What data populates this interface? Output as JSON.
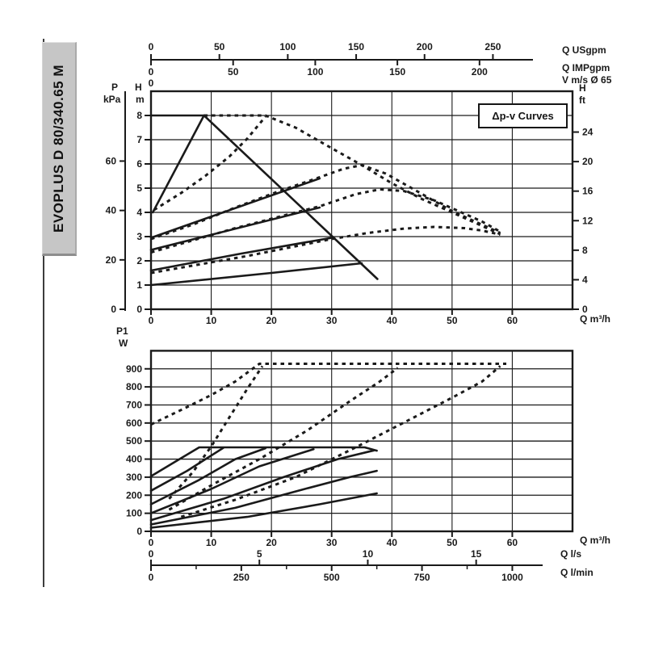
{
  "sidebar": {
    "label": "EVOPLUS D 80/340.65 M"
  },
  "annotation": {
    "text": "Δp-v Curves"
  },
  "labels": {
    "p": "P",
    "kpa": "kPa",
    "h_left": "H",
    "m": "m",
    "h_right": "H",
    "ft": "ft",
    "p1": "P1",
    "w": "W"
  },
  "units": {
    "usgpm": "Q USgpm",
    "impgpm": "Q IMPgpm",
    "vms": "V m/s Ø 65",
    "qm3h": "Q m³/h",
    "qls": "Q l/s",
    "qlmin": "Q l/min"
  },
  "flow_scales": {
    "usgpm_ticks": [
      0,
      50,
      100,
      150,
      200,
      250
    ],
    "impgpm_ticks": [
      0,
      50,
      100,
      150,
      200
    ],
    "v_scale_zero": "0",
    "ls_ticks": [
      0,
      5,
      10,
      15
    ],
    "lmin_ticks": [
      0,
      250,
      500,
      750,
      1000
    ],
    "lmin_minor_ticks": [
      125,
      375,
      625,
      875
    ]
  },
  "chart_data": [
    {
      "id": "head-vs-flow",
      "type": "line",
      "title": "Δp-v Curves",
      "xlabel": "Q m³/h",
      "xlim": [
        0,
        70
      ],
      "x_ticks": [
        0,
        10,
        20,
        30,
        40,
        50,
        60
      ],
      "ylabel": "H m",
      "ylim_m": [
        0,
        9
      ],
      "y_ticks_m": [
        0,
        1,
        2,
        3,
        4,
        5,
        6,
        7,
        8
      ],
      "y_ticks_kpa": [
        0,
        20,
        40,
        60
      ],
      "y_ticks_ft": [
        0,
        4,
        8,
        12,
        16,
        20,
        24
      ],
      "grid": true,
      "series": [
        {
          "name": "max-speed-single",
          "style": "solid",
          "points": [
            [
              0,
              8
            ],
            [
              8.8,
              8
            ],
            [
              37.6,
              1.25
            ]
          ]
        },
        {
          "name": "setpoint-riser-1",
          "style": "solid",
          "points": [
            [
              0.3,
              4
            ],
            [
              8.8,
              8
            ]
          ]
        },
        {
          "name": "setpoint-riser-2",
          "style": "solid",
          "points": [
            [
              0,
              2.95
            ],
            [
              28,
              5.4
            ]
          ]
        },
        {
          "name": "setpoint-riser-3",
          "style": "solid",
          "points": [
            [
              0,
              2.45
            ],
            [
              28,
              4.2
            ]
          ]
        },
        {
          "name": "setpoint-riser-4",
          "style": "solid",
          "points": [
            [
              0,
              1.6
            ],
            [
              15,
              2.3
            ],
            [
              30,
              2.95
            ]
          ]
        },
        {
          "name": "setpoint-riser-5",
          "style": "solid",
          "points": [
            [
              0,
              1.0
            ],
            [
              20,
              1.5
            ],
            [
              35,
              1.9
            ]
          ]
        },
        {
          "name": "max-speed-parallel",
          "style": "dashed",
          "points": [
            [
              8.8,
              8
            ],
            [
              19,
              8
            ],
            [
              24,
              7.5
            ],
            [
              30,
              6.65
            ],
            [
              35,
              5.95
            ],
            [
              40,
              5.2
            ],
            [
              45,
              4.55
            ],
            [
              50,
              4.0
            ],
            [
              54,
              3.55
            ],
            [
              58,
              3.1
            ]
          ]
        },
        {
          "name": "parallel-riser-1",
          "style": "dashed",
          "points": [
            [
              0.5,
              4.1
            ],
            [
              5,
              4.8
            ],
            [
              9,
              5.5
            ],
            [
              13,
              6.3
            ],
            [
              16,
              7.05
            ],
            [
              19,
              7.95
            ]
          ]
        },
        {
          "name": "parallel-hump-2",
          "style": "dashed",
          "points": [
            [
              0,
              2.9
            ],
            [
              7,
              3.5
            ],
            [
              14,
              4.2
            ],
            [
              21,
              4.85
            ],
            [
              28,
              5.45
            ],
            [
              32,
              5.8
            ],
            [
              35,
              5.95
            ],
            [
              39,
              5.6
            ],
            [
              44,
              4.9
            ],
            [
              50,
              4.05
            ],
            [
              54,
              3.6
            ],
            [
              58,
              3.15
            ]
          ]
        },
        {
          "name": "parallel-hump-3",
          "style": "dashed",
          "points": [
            [
              0,
              2.35
            ],
            [
              7,
              2.85
            ],
            [
              14,
              3.35
            ],
            [
              21,
              3.8
            ],
            [
              28,
              4.25
            ],
            [
              34,
              4.75
            ],
            [
              38,
              4.95
            ],
            [
              42,
              4.88
            ],
            [
              47,
              4.5
            ],
            [
              52,
              3.95
            ],
            [
              55,
              3.62
            ],
            [
              58,
              3.2
            ]
          ]
        },
        {
          "name": "parallel-hump-4",
          "style": "dashed",
          "points": [
            [
              0,
              1.5
            ],
            [
              8,
              1.85
            ],
            [
              16,
              2.2
            ],
            [
              24,
              2.6
            ],
            [
              30,
              2.9
            ],
            [
              36,
              3.15
            ],
            [
              42,
              3.33
            ],
            [
              47,
              3.4
            ],
            [
              52,
              3.35
            ],
            [
              55,
              3.25
            ],
            [
              58,
              3.08
            ]
          ]
        }
      ]
    },
    {
      "id": "power-vs-flow",
      "type": "line",
      "xlabel": "Q m³/h",
      "xlim": [
        0,
        70
      ],
      "x_ticks": [
        0,
        10,
        20,
        30,
        40,
        50,
        60
      ],
      "ylabel": "P1 W",
      "ylim_w": [
        0,
        1000
      ],
      "y_ticks_w": [
        0,
        100,
        200,
        300,
        400,
        500,
        600,
        700,
        800,
        900
      ],
      "grid": true,
      "series": [
        {
          "name": "power-max-single",
          "style": "solid",
          "points": [
            [
              0,
              305
            ],
            [
              4,
              385
            ],
            [
              8,
              465
            ],
            [
              35.5,
              465
            ],
            [
              37.5,
              447
            ]
          ]
        },
        {
          "name": "power-solid-2",
          "style": "solid",
          "points": [
            [
              0,
              225
            ],
            [
              6,
              335
            ],
            [
              12,
              462
            ]
          ]
        },
        {
          "name": "power-solid-3",
          "style": "solid",
          "points": [
            [
              0,
              150
            ],
            [
              8,
              285
            ],
            [
              14,
              400
            ],
            [
              19,
              460
            ]
          ]
        },
        {
          "name": "power-solid-4",
          "style": "solid",
          "points": [
            [
              0,
              100
            ],
            [
              10,
              235
            ],
            [
              18,
              360
            ],
            [
              27,
              455
            ]
          ]
        },
        {
          "name": "power-solid-5",
          "style": "solid",
          "points": [
            [
              0,
              62
            ],
            [
              12,
              180
            ],
            [
              22,
              300
            ],
            [
              31,
              400
            ],
            [
              37,
              448
            ]
          ]
        },
        {
          "name": "power-solid-6",
          "style": "solid",
          "points": [
            [
              0,
              38
            ],
            [
              14,
              130
            ],
            [
              25,
              230
            ],
            [
              33,
              300
            ],
            [
              37.5,
              335
            ]
          ]
        },
        {
          "name": "power-solid-7",
          "style": "solid",
          "points": [
            [
              0,
              20
            ],
            [
              16,
              80
            ],
            [
              28,
              150
            ],
            [
              37.5,
              210
            ]
          ]
        },
        {
          "name": "power-max-parallel",
          "style": "dashed",
          "points": [
            [
              0,
              592
            ],
            [
              5,
              672
            ],
            [
              10,
              755
            ],
            [
              14,
              830
            ],
            [
              18,
              928
            ],
            [
              59,
              928
            ]
          ]
        },
        {
          "name": "power-dashed-2",
          "style": "dashed",
          "points": [
            [
              3,
              180
            ],
            [
              7,
              330
            ],
            [
              10,
              470
            ],
            [
              13,
              630
            ],
            [
              16,
              790
            ],
            [
              18.5,
              915
            ]
          ]
        },
        {
          "name": "power-dashed-3",
          "style": "dashed",
          "points": [
            [
              3,
              120
            ],
            [
              10,
              255
            ],
            [
              18,
              400
            ],
            [
              26,
              560
            ],
            [
              33,
              720
            ],
            [
              38,
              830
            ],
            [
              41,
              905
            ]
          ]
        },
        {
          "name": "power-dashed-4",
          "style": "dashed",
          "points": [
            [
              5,
              80
            ],
            [
              14,
              175
            ],
            [
              24,
              300
            ],
            [
              34,
              465
            ],
            [
              43,
              620
            ],
            [
              50,
              740
            ],
            [
              55,
              830
            ],
            [
              58,
              915
            ]
          ]
        }
      ]
    }
  ],
  "colors": {
    "ink": "#1a1a1a",
    "grid": "#2b2b2b",
    "bar": "#c6c6c6"
  }
}
